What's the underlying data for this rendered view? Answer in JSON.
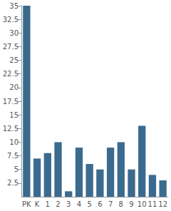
{
  "chart_data": {
    "type": "bar",
    "categories": [
      "PK",
      "K",
      "1",
      "2",
      "3",
      "4",
      "5",
      "6",
      "7",
      "8",
      "9",
      "10",
      "11",
      "12"
    ],
    "values": [
      35,
      7,
      8,
      10,
      1,
      9,
      6,
      5,
      9,
      10,
      5,
      13,
      4,
      3
    ],
    "color": "#3b6a8f",
    "ylim": [
      0,
      35
    ],
    "yticks": [
      2.5,
      5,
      7.5,
      10,
      12.5,
      15,
      17.5,
      20,
      22.5,
      25,
      27.5,
      30,
      32.5,
      35
    ],
    "grid": false
  }
}
